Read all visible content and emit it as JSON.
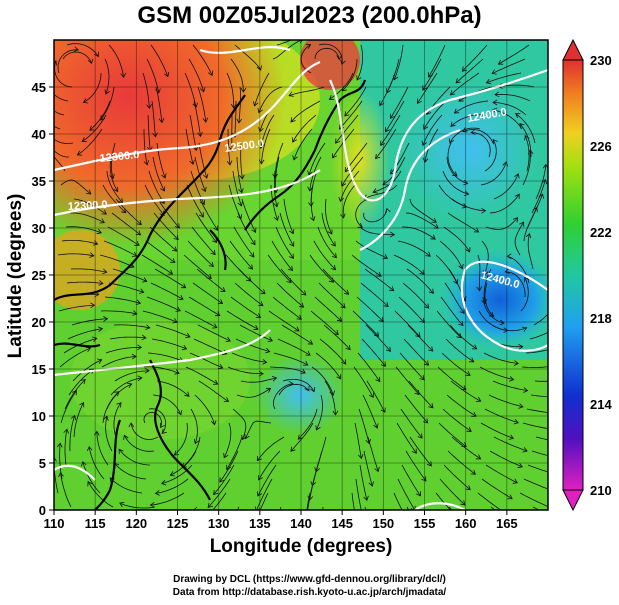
{
  "title": "GSM 00Z05Jul2023 (200.0hPa)",
  "xlabel": "Longitude (degrees)",
  "ylabel": "Latitude  (degrees)",
  "credits": {
    "line1": "Drawing by DCL (https://www.gfd-dennou.org/library/dcl/)",
    "line2": "Data from http://database.rish.kyoto-u.ac.jp/arch/jmadata/"
  },
  "x_ticks": [
    "110",
    "115",
    "120",
    "125",
    "130",
    "135",
    "140",
    "145",
    "150",
    "155",
    "160",
    "165"
  ],
  "y_ticks": [
    "0",
    "5",
    "10",
    "15",
    "20",
    "25",
    "30",
    "35",
    "40",
    "45"
  ],
  "colorbar": {
    "ticks": [
      "230",
      "226",
      "222",
      "218",
      "214",
      "210"
    ],
    "min": 210,
    "max": 230
  },
  "contour_labels": [
    "12300.0",
    "12300.0",
    "12400.0",
    "12400.0",
    "12500.0"
  ]
}
